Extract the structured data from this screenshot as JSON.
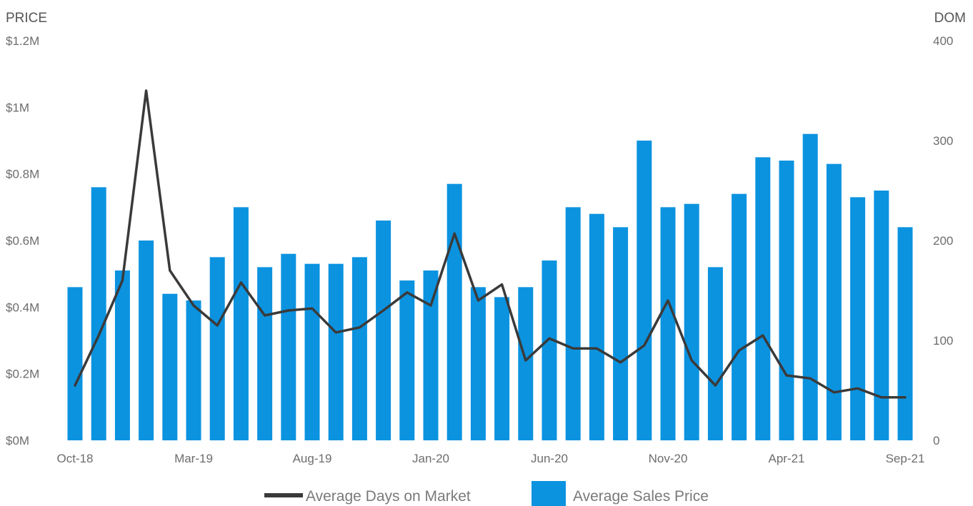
{
  "chart_data": {
    "type": "bar",
    "y_left": {
      "title": "PRICE",
      "min": 0,
      "max": 1.2,
      "ticks": [
        0,
        0.2,
        0.4,
        0.6,
        0.8,
        1.0,
        1.2
      ],
      "tick_labels": [
        "$0M",
        "$0.2M",
        "$0.4M",
        "$0.6M",
        "$0.8M",
        "$1M",
        "$1.2M"
      ]
    },
    "y_right": {
      "title": "DOM",
      "min": 0,
      "max": 400,
      "ticks": [
        0,
        100,
        200,
        300,
        400
      ],
      "tick_labels": [
        "0",
        "100",
        "200",
        "300",
        "400"
      ]
    },
    "x_tick_labels": [
      "Oct-18",
      "Mar-19",
      "Aug-19",
      "Jan-20",
      "Jun-20",
      "Nov-20",
      "Apr-21",
      "Sep-21"
    ],
    "categories": [
      "Oct-18",
      "Nov-18",
      "Dec-18",
      "Jan-19",
      "Feb-19",
      "Mar-19",
      "Apr-19",
      "May-19",
      "Jun-19",
      "Jul-19",
      "Aug-19",
      "Sep-19",
      "Oct-19",
      "Nov-19",
      "Dec-19",
      "Jan-20",
      "Feb-20",
      "Mar-20",
      "Apr-20",
      "May-20",
      "Jun-20",
      "Jul-20",
      "Aug-20",
      "Sep-20",
      "Oct-20",
      "Nov-20",
      "Dec-20",
      "Jan-21",
      "Feb-21",
      "Mar-21",
      "Apr-21",
      "May-21",
      "Jun-21",
      "Jul-21",
      "Aug-21",
      "Sep-21"
    ],
    "legend_position": "bottom",
    "grid": false,
    "series": [
      {
        "name": "Average Sales Price",
        "type": "bar",
        "axis": "left",
        "color": "#0b93e0",
        "values": [
          0.46,
          0.76,
          0.51,
          0.6,
          0.44,
          0.42,
          0.55,
          0.7,
          0.52,
          0.56,
          0.53,
          0.53,
          0.55,
          0.66,
          0.48,
          0.51,
          0.77,
          0.46,
          0.43,
          0.46,
          0.54,
          0.7,
          0.68,
          0.64,
          0.9,
          0.7,
          0.71,
          0.52,
          0.74,
          0.85,
          0.84,
          0.92,
          0.83,
          0.73,
          0.75,
          0.64
        ]
      },
      {
        "name": "Average Days on Market",
        "type": "line",
        "axis": "right",
        "color": "#3a3a3a",
        "values": [
          55,
          105,
          160,
          350,
          170,
          135,
          115,
          158,
          125,
          130,
          132,
          108,
          113,
          130,
          148,
          135,
          207,
          140,
          156,
          80,
          102,
          92,
          92,
          78,
          95,
          140,
          80,
          55,
          90,
          105,
          65,
          62,
          48,
          52,
          43,
          43
        ]
      }
    ]
  }
}
